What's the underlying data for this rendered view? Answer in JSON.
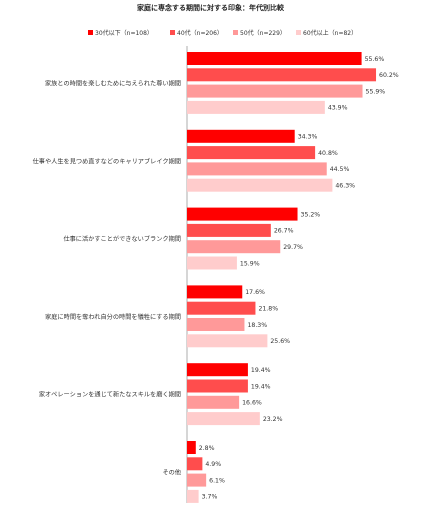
{
  "chart_data": {
    "type": "bar",
    "orientation": "horizontal",
    "title": "家庭に専念する期間に対する印象：年代別比較",
    "categories": [
      "家族との時間を楽しむために与えられた尊い期間",
      "仕事や人生を見つめ直すなどのキャリアブレイク期間",
      "仕事に活かすことができないブランク期間",
      "家庭に時間を奪われ自分の時間を犠牲にする期間",
      "家オペレーションを通じて新たなスキルを磨く期間",
      "その他"
    ],
    "series": [
      {
        "name": "30代以下（n=108）",
        "color": "#ff0000",
        "values": [
          55.6,
          34.3,
          35.2,
          17.6,
          19.4,
          2.8
        ]
      },
      {
        "name": "40代（n=206）",
        "color": "#ff4d4d",
        "values": [
          60.2,
          40.8,
          26.7,
          21.8,
          19.4,
          4.9
        ]
      },
      {
        "name": "50代（n=229）",
        "color": "#ff9999",
        "values": [
          55.9,
          44.5,
          29.7,
          18.3,
          16.6,
          6.1
        ]
      },
      {
        "name": "60代以上（n=82）",
        "color": "#ffcccc",
        "values": [
          43.9,
          46.3,
          15.9,
          25.6,
          23.2,
          3.7
        ]
      }
    ],
    "value_suffix": "%",
    "xlim": [
      0,
      70
    ],
    "grid": false,
    "legend_position": "top"
  }
}
